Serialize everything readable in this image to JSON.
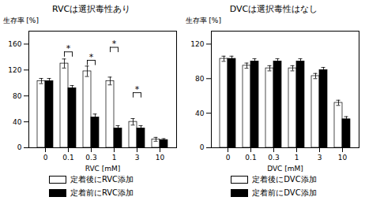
{
  "chart_data": [
    {
      "type": "bar",
      "title": "RVCは選択毒性あり",
      "xlabel": "RVC [mM]",
      "ylabel": "生存率 [%]",
      "categories": [
        "0",
        "0.1",
        "0.3",
        "1",
        "3",
        "10"
      ],
      "series": [
        {
          "name": "定着後にRVC添加",
          "color": "white",
          "values": [
            103,
            130,
            118,
            103,
            40,
            13
          ],
          "errors": [
            4,
            7,
            8,
            6,
            5,
            3
          ]
        },
        {
          "name": "定着前にRVC添加",
          "color": "black",
          "values": [
            103,
            92,
            47,
            30,
            30,
            12
          ],
          "errors": [
            4,
            4,
            5,
            4,
            4,
            2
          ]
        }
      ],
      "ylim": [
        0,
        180
      ],
      "yticks": [
        0,
        40,
        80,
        120,
        160
      ],
      "grid": false,
      "legend": "bottom",
      "annotations": [
        {
          "category": "0.1",
          "y": 148,
          "y_low": 140,
          "text": "*"
        },
        {
          "category": "0.3",
          "y": 135,
          "y_low": 127,
          "text": "*"
        },
        {
          "category": "1",
          "y": 155,
          "y_low": 147,
          "text": "*"
        },
        {
          "category": "3",
          "y": 85,
          "y_low": 77,
          "text": "*"
        }
      ]
    },
    {
      "type": "bar",
      "title": "DVCは選択毒性はなし",
      "xlabel": "DVC [mM]",
      "ylabel": "生存率 [%]",
      "categories": [
        "0",
        "0.1",
        "0.3",
        "1",
        "3",
        "10"
      ],
      "series": [
        {
          "name": "定着後にDVC添加",
          "color": "white",
          "values": [
            103,
            95,
            92,
            92,
            83,
            52
          ],
          "errors": [
            3,
            3,
            3,
            3,
            3,
            3
          ]
        },
        {
          "name": "定着前にDVC添加",
          "color": "black",
          "values": [
            103,
            100,
            100,
            100,
            90,
            33
          ],
          "errors": [
            3,
            3,
            3,
            3,
            3,
            3
          ]
        }
      ],
      "ylim": [
        0,
        135
      ],
      "yticks": [
        0,
        40,
        80,
        120
      ],
      "grid": false,
      "legend": "bottom"
    }
  ]
}
